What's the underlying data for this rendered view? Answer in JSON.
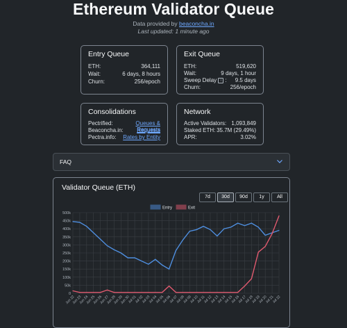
{
  "header": {
    "title": "Ethereum Validator Queue",
    "provided_prefix": "Data provided by ",
    "provided_link": "beaconcha.in",
    "updated": "Last updated: 1 minute ago"
  },
  "entry": {
    "title": "Entry Queue",
    "rows": [
      {
        "label": "ETH:",
        "value": "364,111"
      },
      {
        "label": "Wait:",
        "value": "6 days, 8 hours"
      },
      {
        "label": "Churn:",
        "value": "256/epoch"
      }
    ]
  },
  "exit": {
    "title": "Exit Queue",
    "rows": [
      {
        "label": "ETH:",
        "value": "519,620"
      },
      {
        "label": "Wait:",
        "value": "9 days, 1 hour"
      },
      {
        "label": "Sweep Delay",
        "value": "9.5 days"
      },
      {
        "label": "Churn:",
        "value": "256/epoch"
      }
    ]
  },
  "consolidations": {
    "title": "Consolidations",
    "rows": [
      {
        "label": "Pectrified:",
        "value": "Queues & Requests"
      },
      {
        "label": "Beaconcha.in:",
        "value": "Requests"
      },
      {
        "label": "Pectra.info:",
        "value": "Rates by Entity"
      }
    ]
  },
  "network": {
    "title": "Network",
    "rows": [
      {
        "label": "Active Validators:",
        "value": "1,093,849"
      },
      {
        "label": "Staked ETH:",
        "value": "35.7M (29.49%)"
      },
      {
        "label": "APR:",
        "value": "3.02%"
      }
    ]
  },
  "faq": {
    "label": "FAQ",
    "icon": "chevron-down-icon"
  },
  "chart_section": {
    "title": "Validator Queue (ETH)",
    "ranges": [
      "7d",
      "30d",
      "90d",
      "1y",
      "All"
    ],
    "active_range": "30d"
  },
  "colors": {
    "entry": "#4f8fe0",
    "exit": "#e05a6f",
    "link": "#6ea8fe",
    "bg": "#212529"
  },
  "chart_data": {
    "type": "line",
    "ylim": [
      0,
      500000
    ],
    "y_ticks": [
      "0",
      "50k",
      "100k",
      "150k",
      "200k",
      "250k",
      "300k",
      "350k",
      "400k",
      "450k",
      "500k"
    ],
    "x": [
      "Jun 22",
      "Jun 23",
      "Jun 24",
      "Jun 25",
      "Jun 26",
      "Jun 27",
      "Jun 28",
      "Jun 29",
      "Jun 30",
      "Jul 01",
      "Jul 02",
      "Jul 03",
      "Jul 04",
      "Jul 05",
      "Jul 06",
      "Jul 07",
      "Jul 08",
      "Jul 09",
      "Jul 10",
      "Jul 11",
      "Jul 12",
      "Jul 13",
      "Jul 14",
      "Jul 15",
      "Jul 16",
      "Jul 17",
      "Jul 18",
      "Jul 19",
      "Jul 20",
      "Jul 21",
      "Jul 22"
    ],
    "legend_position": "top",
    "grid": true,
    "series": [
      {
        "name": "Entry",
        "values": [
          445000,
          440000,
          415000,
          375000,
          335000,
          295000,
          270000,
          250000,
          220000,
          220000,
          200000,
          180000,
          210000,
          175000,
          150000,
          265000,
          330000,
          385000,
          395000,
          415000,
          395000,
          355000,
          400000,
          410000,
          435000,
          420000,
          435000,
          410000,
          360000,
          375000,
          390000
        ]
      },
      {
        "name": "Exit",
        "values": [
          15000,
          5000,
          5000,
          5000,
          5000,
          20000,
          5000,
          5000,
          5000,
          5000,
          5000,
          5000,
          5000,
          5000,
          45000,
          5000,
          5000,
          5000,
          5000,
          5000,
          5000,
          5000,
          5000,
          5000,
          5000,
          45000,
          90000,
          255000,
          290000,
          370000,
          480000
        ]
      }
    ]
  }
}
